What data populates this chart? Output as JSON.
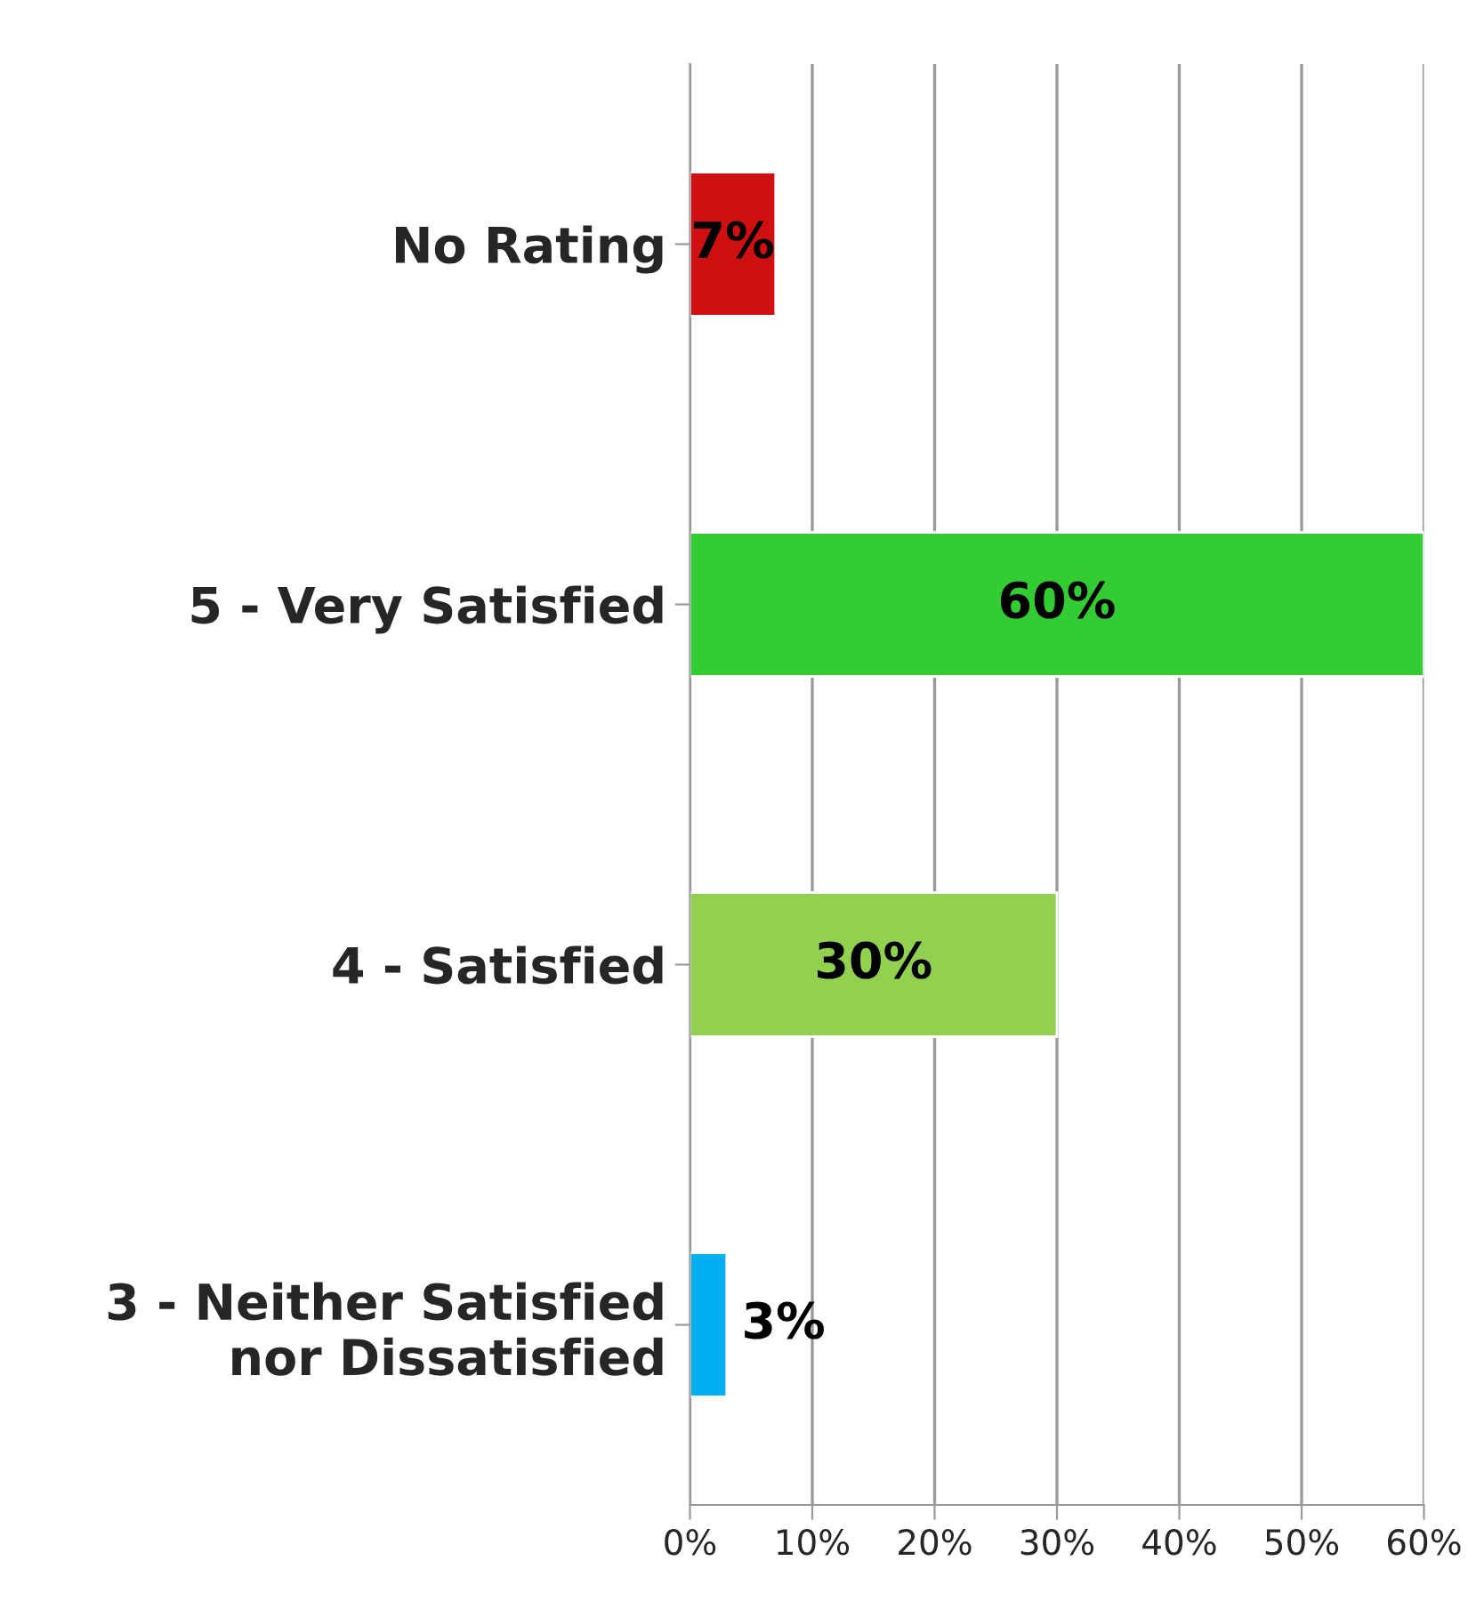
{
  "chart_data": {
    "type": "bar",
    "orientation": "horizontal",
    "categories": [
      "No Rating",
      "5 - Very Satisfied",
      "4 - Satisfied",
      "3 - Neither Satisfied\nnor Dissatisfied"
    ],
    "values": [
      7,
      60,
      30,
      3
    ],
    "colors": [
      "#d01010",
      "#33cc33",
      "#92d050",
      "#00b0f0"
    ],
    "value_labels": [
      "7%",
      "60%",
      "30%",
      "3%"
    ],
    "xlim": [
      0,
      60
    ],
    "xticks": [
      {
        "value": 0,
        "label": "0%"
      },
      {
        "value": 10,
        "label": "10%"
      },
      {
        "value": 20,
        "label": "20%"
      },
      {
        "value": 30,
        "label": "30%"
      },
      {
        "value": 40,
        "label": "40%"
      },
      {
        "value": 50,
        "label": "50%"
      },
      {
        "value": 60,
        "label": "60%"
      }
    ],
    "grid": "x",
    "legend": false
  }
}
